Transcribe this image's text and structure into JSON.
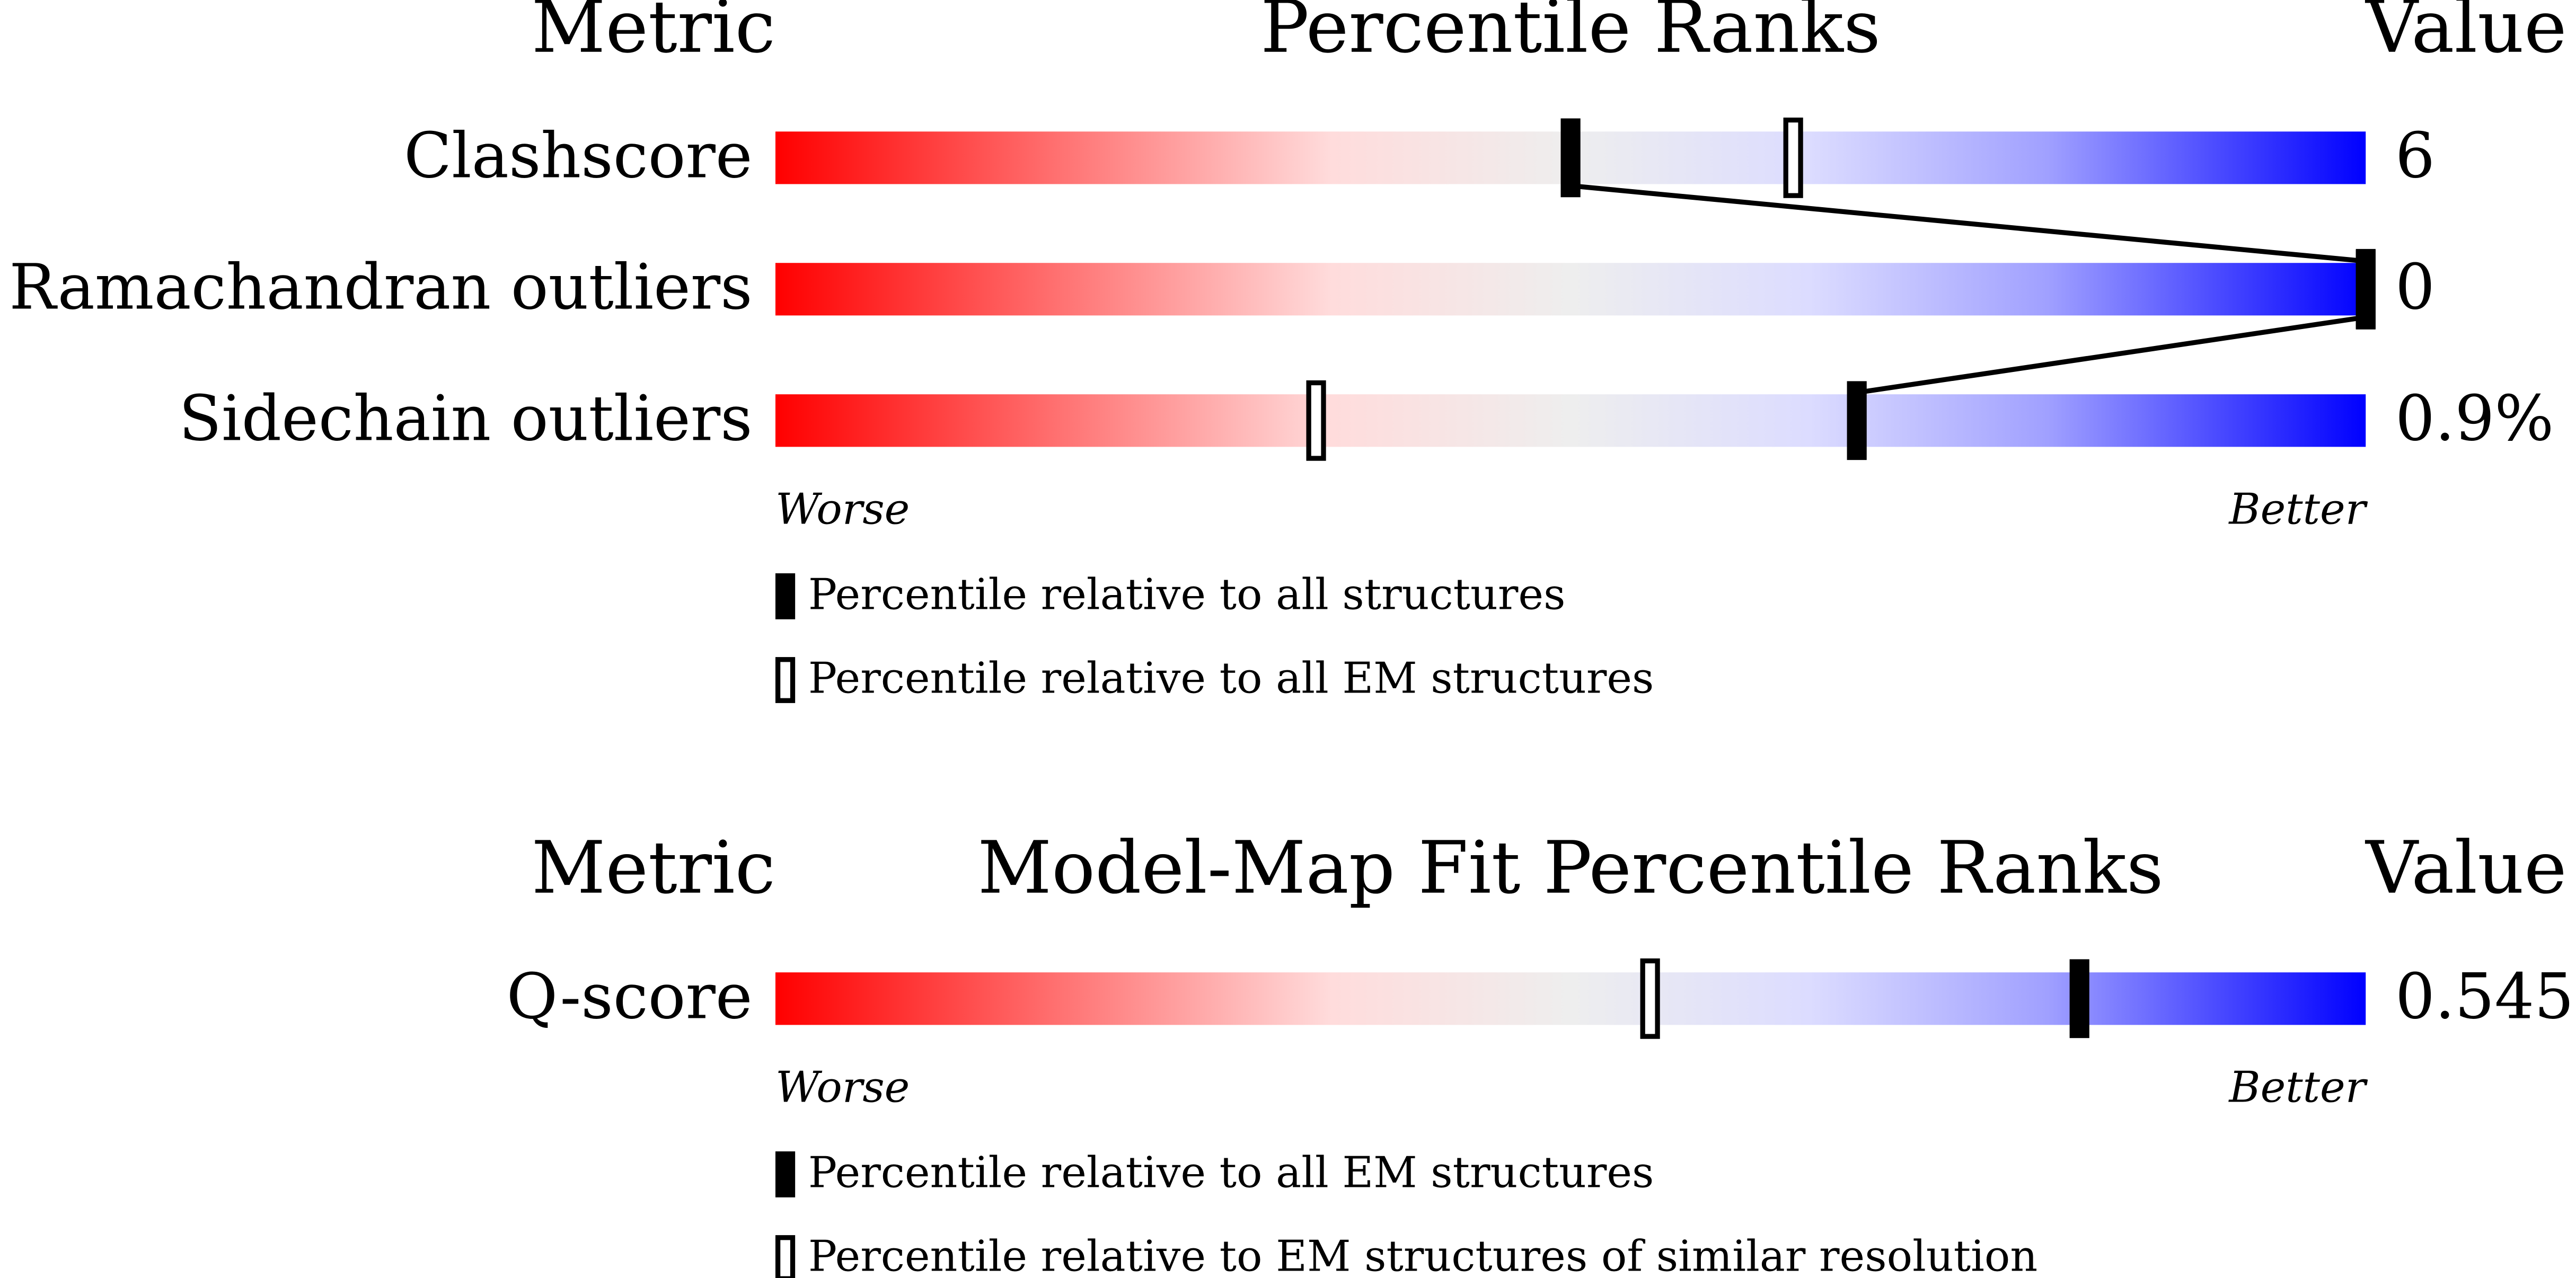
{
  "chart_data": [
    {
      "type": "percentile-slider",
      "title": "Percentile Ranks",
      "metric_header": "Metric",
      "value_header": "Value",
      "xlim": [
        0,
        100
      ],
      "worse_label": "Worse",
      "better_label": "Better",
      "categories": [
        "Clashscore",
        "Ramachandran outliers",
        "Sidechain outliers"
      ],
      "value_column": [
        "6",
        "0",
        "0.9%"
      ],
      "series": [
        {
          "name": "Percentile relative to all structures",
          "style": "filled",
          "color": "#000000",
          "values": [
            50,
            100,
            68
          ]
        },
        {
          "name": "Percentile relative to all EM structures",
          "style": "hollow",
          "color": "#000000",
          "values": [
            64,
            100,
            34
          ]
        }
      ]
    },
    {
      "type": "percentile-slider",
      "title": "Model-Map Fit Percentile Ranks",
      "metric_header": "Metric",
      "value_header": "Value",
      "xlim": [
        0,
        100
      ],
      "worse_label": "Worse",
      "better_label": "Better",
      "categories": [
        "Q-score"
      ],
      "value_column": [
        "0.545"
      ],
      "series": [
        {
          "name": "Percentile relative to all EM structures",
          "style": "filled",
          "color": "#000000",
          "values": [
            82
          ]
        },
        {
          "name": "Percentile relative to EM structures of similar resolution",
          "style": "hollow",
          "color": "#000000",
          "values": [
            55
          ]
        }
      ]
    }
  ]
}
